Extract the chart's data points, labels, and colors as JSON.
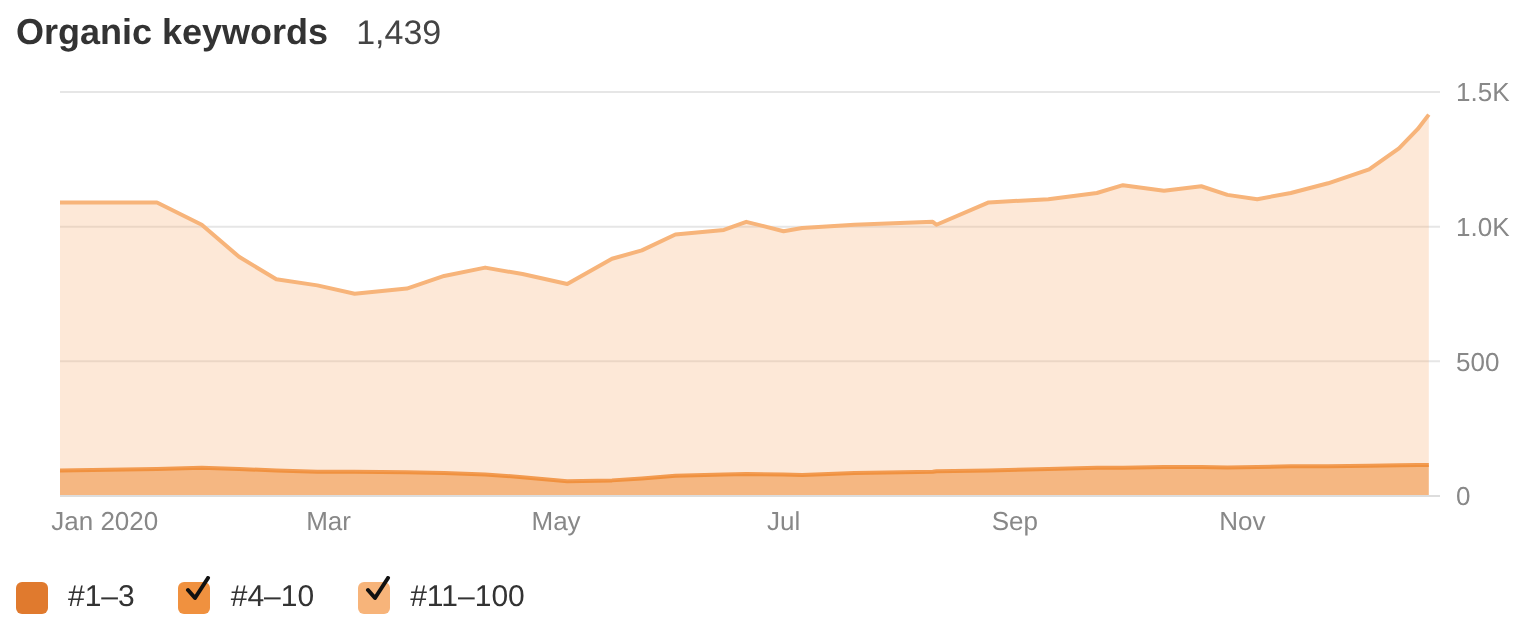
{
  "chart_data": {
    "type": "area",
    "title": "Organic keywords",
    "subtitle": "1,439",
    "stacked": true,
    "grid": "y",
    "legend": "bottom left",
    "x": [
      "2019-12-20",
      "2020-01-15",
      "2020-01-27",
      "2020-02-06",
      "2020-02-16",
      "2020-02-27",
      "2020-03-08",
      "2020-03-22",
      "2020-04-01",
      "2020-04-12",
      "2020-04-22",
      "2020-05-04",
      "2020-05-16",
      "2020-05-24",
      "2020-06-02",
      "2020-06-15",
      "2020-06-21",
      "2020-07-01",
      "2020-07-06",
      "2020-07-20",
      "2020-08-10",
      "2020-08-11",
      "2020-08-25",
      "2020-09-10",
      "2020-09-23",
      "2020-09-30",
      "2020-10-11",
      "2020-10-21",
      "2020-10-28",
      "2020-11-05",
      "2020-11-14",
      "2020-11-24",
      "2020-12-05",
      "2020-12-13",
      "2020-12-18",
      "2020-12-21"
    ],
    "xlim": [
      "2019-12-20",
      "2020-12-24"
    ],
    "xticks": [
      {
        "value": "2020-01-01",
        "label": "Jan 2020"
      },
      {
        "value": "2020-03-01",
        "label": "Mar"
      },
      {
        "value": "2020-05-01",
        "label": "May"
      },
      {
        "value": "2020-07-01",
        "label": "Jul"
      },
      {
        "value": "2020-09-01",
        "label": "Sep"
      },
      {
        "value": "2020-11-01",
        "label": "Nov"
      }
    ],
    "ylim": [
      0,
      1500
    ],
    "yticks": [
      0,
      500,
      {
        "value": 1000,
        "label": "1.0K"
      },
      {
        "value": 1500,
        "label": "1.5K"
      }
    ],
    "series": [
      {
        "name": "#1–3",
        "color": "#e07a2e",
        "values": [
          null,
          null,
          null,
          null,
          null,
          null,
          null,
          null,
          null,
          null,
          null,
          null,
          null,
          null,
          null,
          null,
          null,
          null,
          null,
          null,
          null,
          null,
          null,
          null,
          null,
          null,
          null,
          null,
          null,
          null,
          null,
          null,
          null,
          null,
          null,
          null
        ]
      },
      {
        "name": "#4–10",
        "color": "#f0913f",
        "values": [
          95,
          100,
          105,
          100,
          95,
          90,
          90,
          88,
          85,
          80,
          70,
          55,
          58,
          65,
          75,
          80,
          82,
          80,
          78,
          85,
          90,
          92,
          95,
          100,
          105,
          105,
          108,
          108,
          106,
          108,
          110,
          110,
          112,
          114,
          115,
          115
        ]
      },
      {
        "name": "#11–100",
        "color": "#f7b47a",
        "values": [
          995,
          990,
          902,
          788,
          710,
          692,
          661,
          682,
          732,
          768,
          754,
          732,
          823,
          847,
          896,
          908,
          936,
          903,
          917,
          922,
          928,
          915,
          995,
          1002,
          1020,
          1049,
          1025,
          1042,
          1012,
          994,
          1015,
          1051,
          1101,
          1177,
          1247,
          1301
        ]
      }
    ]
  }
}
